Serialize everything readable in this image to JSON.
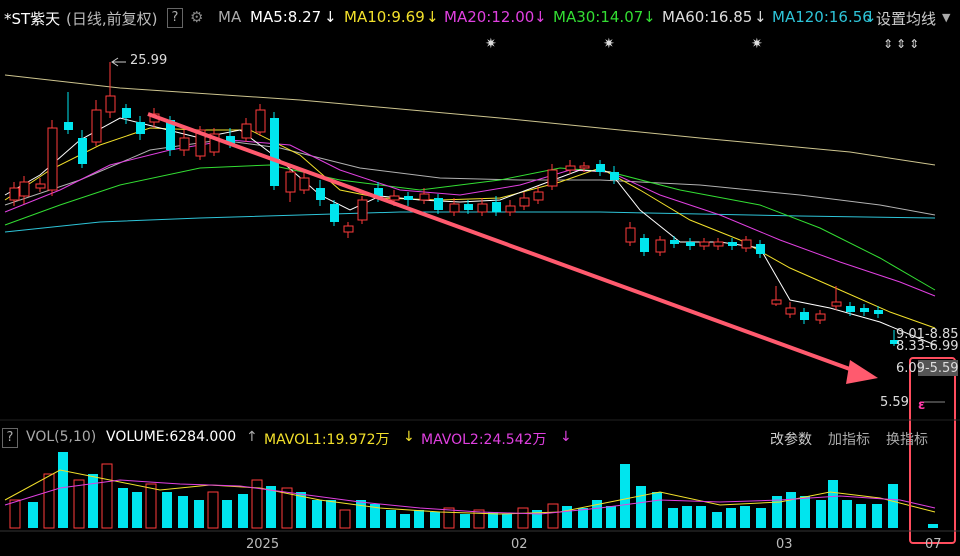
{
  "stock": {
    "name": "*ST紫天",
    "mode": "(日线,前复权)",
    "help": "?"
  },
  "ma": {
    "label": "MA",
    "lines": [
      {
        "text": "MA5:8.27",
        "color": "#ffffff"
      },
      {
        "text": "MA10:9.69",
        "color": "#f2e02b"
      },
      {
        "text": "MA20:12.00",
        "color": "#e040e0"
      },
      {
        "text": "MA30:14.07",
        "color": "#33dd33"
      },
      {
        "text": "MA60:16.85",
        "color": "#dddddd"
      },
      {
        "text": "MA120:16.56",
        "color": "#2ec4d8"
      }
    ],
    "settings": "设置均线"
  },
  "price_marks": {
    "high": "25.99",
    "low": "5.59",
    "r1": "9.01-8.85",
    "r2": "8.33-6.99",
    "r3": "6.09-5.59",
    "cursor_mark": "ε"
  },
  "volume": {
    "help": "?",
    "title": "VOL(5,10)",
    "volume_text": "VOLUME:6284.000",
    "mavol1": "MAVOL1:19.972万",
    "mavol2": "MAVOL2:24.542万",
    "buttons": [
      "改参数",
      "加指标",
      "换指标"
    ]
  },
  "x_axis": {
    "labels": [
      "2025",
      "02",
      "03",
      "07"
    ]
  },
  "colors": {
    "up": "#ff3b3b",
    "down": "#00e5ee",
    "arrow": "#ff5a6e",
    "highlight": "#ff4d5e"
  }
}
